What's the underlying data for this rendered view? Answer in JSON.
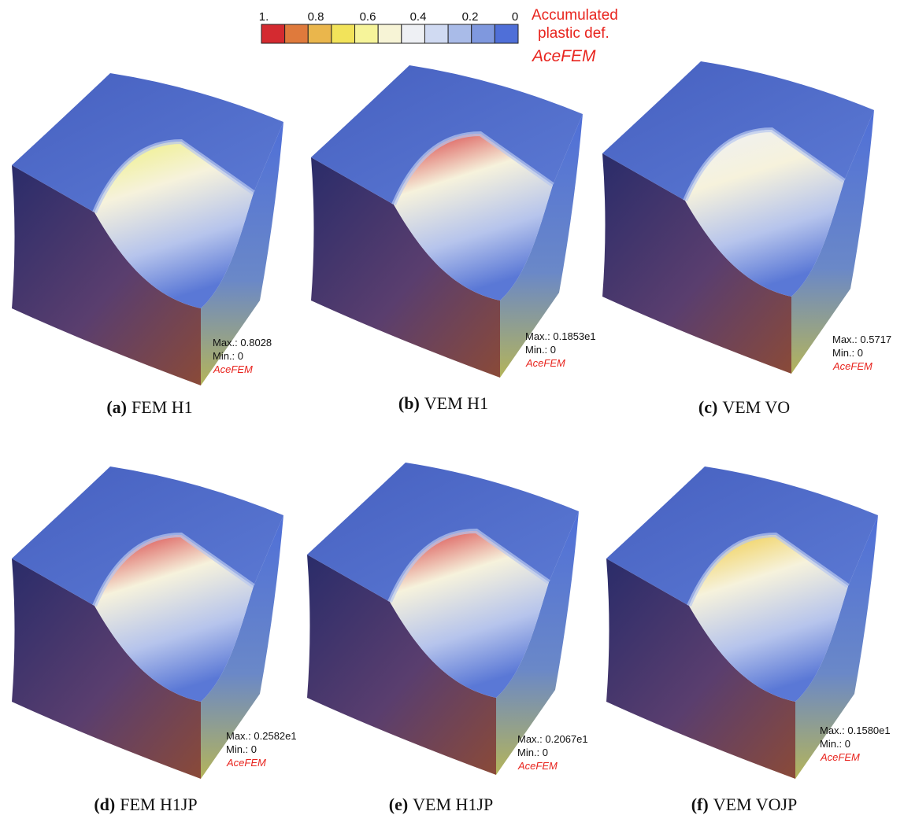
{
  "legend": {
    "ticks": [
      "1.",
      "0.8",
      "0.6",
      "0.4",
      "0.2",
      "0"
    ],
    "colors": [
      "#d42a30",
      "#df7a3c",
      "#eab64c",
      "#f2e35a",
      "#f6f49a",
      "#f7f4d6",
      "#eef0f4",
      "#d0daf2",
      "#a9bbe8",
      "#7f98de",
      "#4f6fd8"
    ],
    "title_lines": [
      "Accumulated",
      "plastic def."
    ],
    "software": "AceFEM"
  },
  "panels": [
    {
      "label": "(a)",
      "caption": "FEM H1",
      "max": "Max.: 0.8028",
      "min": "Min.: 0",
      "software": "AceFEM"
    },
    {
      "label": "(b)",
      "caption": "VEM H1",
      "max": "Max.: 0.1853e1",
      "min": "Min.: 0",
      "software": "AceFEM"
    },
    {
      "label": "(c)",
      "caption": "VEM VO",
      "max": "Max.: 0.5717",
      "min": "Min.: 0",
      "software": "AceFEM"
    },
    {
      "label": "(d)",
      "caption": "FEM H1JP",
      "max": "Max.: 0.2582e1",
      "min": "Min.: 0",
      "software": "AceFEM"
    },
    {
      "label": "(e)",
      "caption": "VEM H1JP",
      "max": "Max.: 0.2067e1",
      "min": "Min.: 0",
      "software": "AceFEM"
    },
    {
      "label": "(f)",
      "caption": "VEM VOJP",
      "max": "Max.: 0.1580e1",
      "min": "Min.: 0",
      "software": "AceFEM"
    }
  ]
}
